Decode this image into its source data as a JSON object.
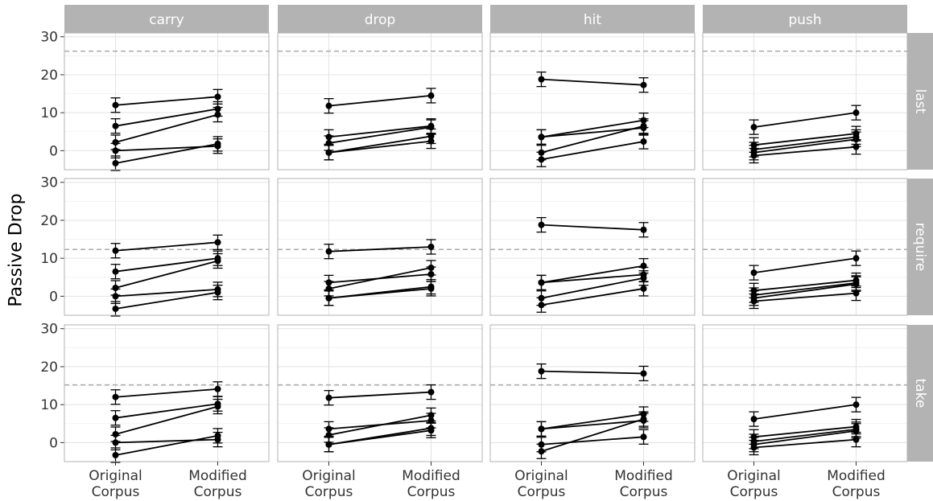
{
  "chart_data": {
    "type": "line",
    "ylabel": "Passive Drop",
    "xlabel": "",
    "x_categories": [
      "Original\nCorpus",
      "Modified\nCorpus"
    ],
    "ylim": [
      -5,
      31
    ],
    "y_ticks": [
      0,
      10,
      20,
      30
    ],
    "facet_columns": [
      "carry",
      "drop",
      "hit",
      "push"
    ],
    "facet_rows": [
      "last",
      "require",
      "take"
    ],
    "reference_lines": {
      "last": 26.2,
      "require": 12.3,
      "take": 15.2
    },
    "panels": {
      "last": {
        "carry": [
          [
            12,
            14.2
          ],
          [
            6.5,
            11
          ],
          [
            2.2,
            9.5
          ],
          [
            0,
            1.2
          ],
          [
            -3.3,
            1.8
          ]
        ],
        "drop": [
          [
            11.8,
            14.5
          ],
          [
            3.6,
            6.5
          ],
          [
            2,
            6.2
          ],
          [
            -0.5,
            3.8
          ],
          [
            -0.5,
            2.5
          ]
        ],
        "hit": [
          [
            18.8,
            17.3
          ],
          [
            3.6,
            6
          ],
          [
            3.6,
            8
          ],
          [
            -0.5,
            6.5
          ],
          [
            -2.3,
            2.4
          ]
        ],
        "push": [
          [
            6.2,
            10
          ],
          [
            1.5,
            4.5
          ],
          [
            0.3,
            3.6
          ],
          [
            -0.5,
            3
          ],
          [
            -1.3,
            1
          ]
        ]
      },
      "require": {
        "carry": [
          [
            12,
            14.2
          ],
          [
            6.5,
            10
          ],
          [
            2.2,
            9.3
          ],
          [
            0,
            1.8
          ],
          [
            -3.3,
            1
          ]
        ],
        "drop": [
          [
            11.8,
            13
          ],
          [
            3.6,
            5.8
          ],
          [
            2,
            7.5
          ],
          [
            -0.5,
            2.5
          ],
          [
            -0.5,
            2
          ]
        ],
        "hit": [
          [
            18.8,
            17.5
          ],
          [
            3.6,
            8
          ],
          [
            3.6,
            5.7
          ],
          [
            -0.5,
            4.8
          ],
          [
            -2.3,
            2
          ]
        ],
        "push": [
          [
            6.2,
            10
          ],
          [
            1.5,
            4.2
          ],
          [
            0.3,
            3.5
          ],
          [
            -0.5,
            3.2
          ],
          [
            -1.3,
            0.8
          ]
        ]
      },
      "take": {
        "carry": [
          [
            12,
            14.1
          ],
          [
            6.5,
            10.2
          ],
          [
            2.2,
            9.5
          ],
          [
            0,
            0.8
          ],
          [
            -3.3,
            1.8
          ]
        ],
        "drop": [
          [
            11.8,
            13.3
          ],
          [
            3.6,
            5.8
          ],
          [
            2,
            7.2
          ],
          [
            -0.5,
            3.8
          ],
          [
            -0.5,
            3.2
          ]
        ],
        "hit": [
          [
            18.8,
            18.2
          ],
          [
            3.6,
            7.5
          ],
          [
            3.6,
            5.8
          ],
          [
            -0.5,
            1.5
          ],
          [
            -2.3,
            6.2
          ]
        ],
        "push": [
          [
            6.2,
            10
          ],
          [
            1.5,
            4.2
          ],
          [
            0.3,
            3.5
          ],
          [
            -0.5,
            3.1
          ],
          [
            -1.3,
            0.8
          ]
        ]
      }
    }
  }
}
